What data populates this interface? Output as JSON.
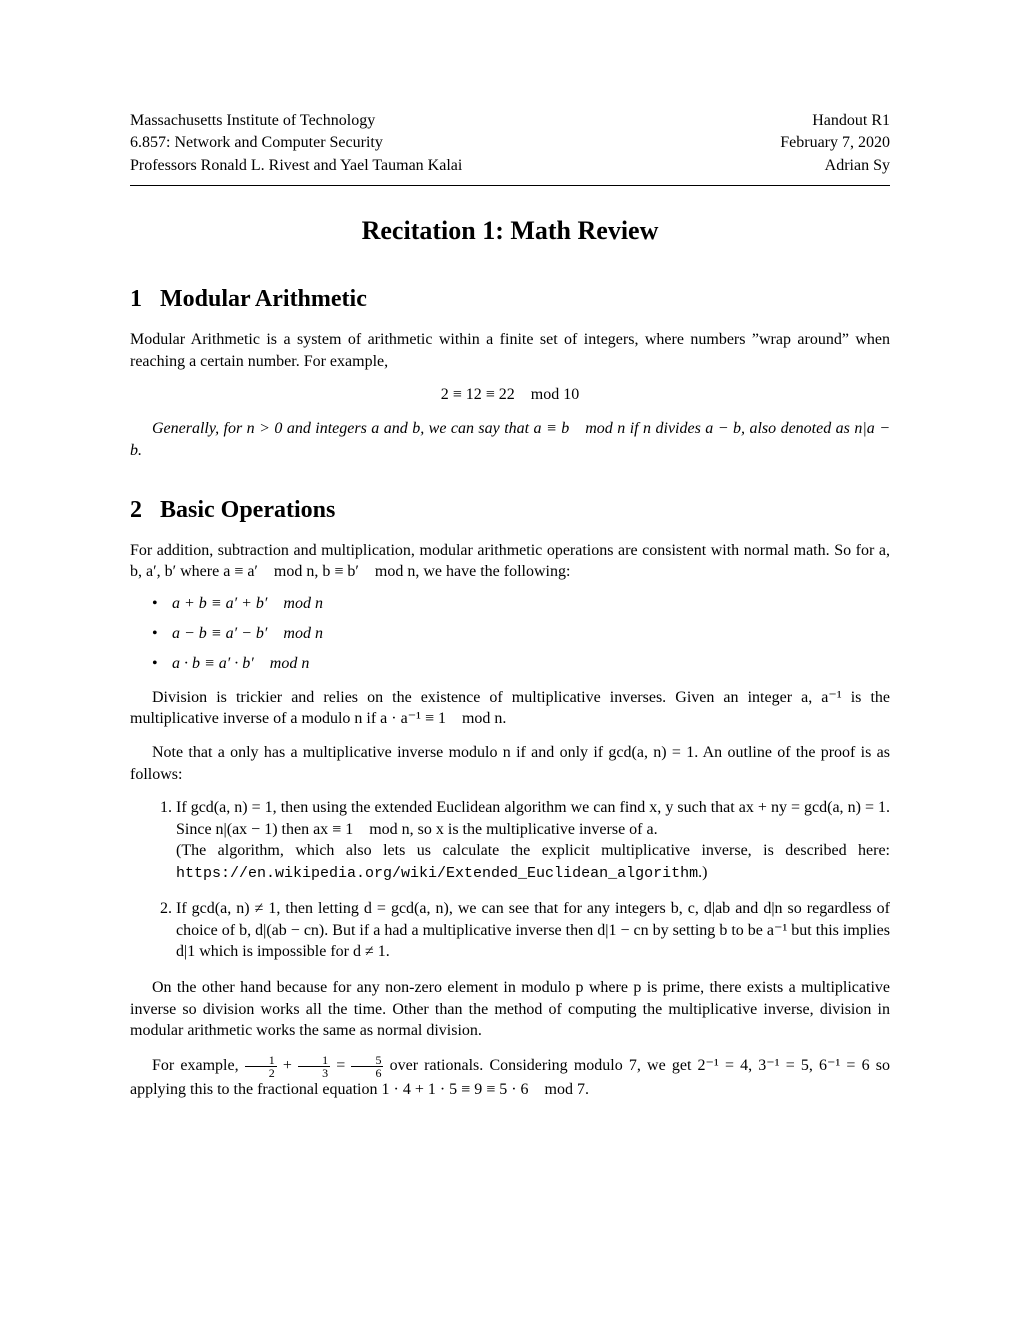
{
  "header": {
    "left1": "Massachusetts Institute of Technology",
    "left2": "6.857: Network and Computer Security",
    "left3": "Professors Ronald L. Rivest and Yael Tauman Kalai",
    "right1": "Handout R1",
    "right2": "February 7, 2020",
    "right3": "Adrian Sy"
  },
  "title": "Recitation 1: Math Review",
  "s1": {
    "num": "1",
    "heading": "Modular Arithmetic",
    "p1a": "Modular Arithmetic is a system of arithmetic within a finite set of integers, where numbers ”wrap around” when reaching a certain number. For example,",
    "eq1": "2 ≡ 12 ≡ 22 mod 10",
    "p2": "Generally, for n > 0 and integers a and b, we can say that a ≡ b mod n if n divides a − b, also denoted as n|a − b."
  },
  "s2": {
    "num": "2",
    "heading": "Basic Operations",
    "p1": "For addition, subtraction and multiplication, modular arithmetic operations are consistent with normal math. So for a, b, a′, b′ where a ≡ a′ mod n, b ≡ b′ mod n, we have the following:",
    "b1": "a + b ≡ a′ + b′ mod n",
    "b2": "a − b ≡ a′ − b′ mod n",
    "b3": "a · b ≡ a′ · b′ mod n",
    "p2": "Division is trickier and relies on the existence of multiplicative inverses. Given an integer a, a⁻¹ is the multiplicative inverse of a modulo n if a · a⁻¹ ≡ 1 mod n.",
    "p3": "Note that a only has a multiplicative inverse modulo n if and only if gcd(a, n) = 1. An outline of the proof is as follows:",
    "li1a": "If gcd(a, n) = 1, then using the extended Euclidean algorithm we can find x, y such that ax + ny = gcd(a, n) = 1. Since n|(ax − 1) then ax ≡ 1 mod n, so x is the multiplicative inverse of a.",
    "li1b_pre": "(The algorithm, which also lets us calculate the explicit multiplicative inverse, is described here: ",
    "li1b_url": "https://en.wikipedia.org/wiki/Extended_Euclidean_algorithm",
    "li1b_post": ".)",
    "li2": "If gcd(a, n) ≠ 1, then letting d = gcd(a, n), we can see that for any integers b, c, d|ab and d|n so regardless of choice of b, d|(ab − cn). But if a had a multiplicative inverse then d|1 − cn by setting b to be a⁻¹ but this implies d|1 which is impossible for d ≠ 1.",
    "p4": "On the other hand because for any non-zero element in modulo p where p is prime, there exists a multiplicative inverse so division works all the time. Other than the method of computing the multiplicative inverse, division in modular arithmetic works the same as normal division.",
    "p5_pre": "For example, ",
    "frac1n": "1",
    "frac1d": "2",
    "plus": " + ",
    "frac2n": "1",
    "frac2d": "3",
    "eq": " = ",
    "frac3n": "5",
    "frac3d": "6",
    "p5_mid": " over rationals. Considering modulo 7, we get 2⁻¹ = 4, 3⁻¹ = 5, 6⁻¹ = 6 so applying this to the fractional equation 1 · 4 + 1 · 5 ≡ 9 ≡ 5 · 6 mod 7."
  }
}
